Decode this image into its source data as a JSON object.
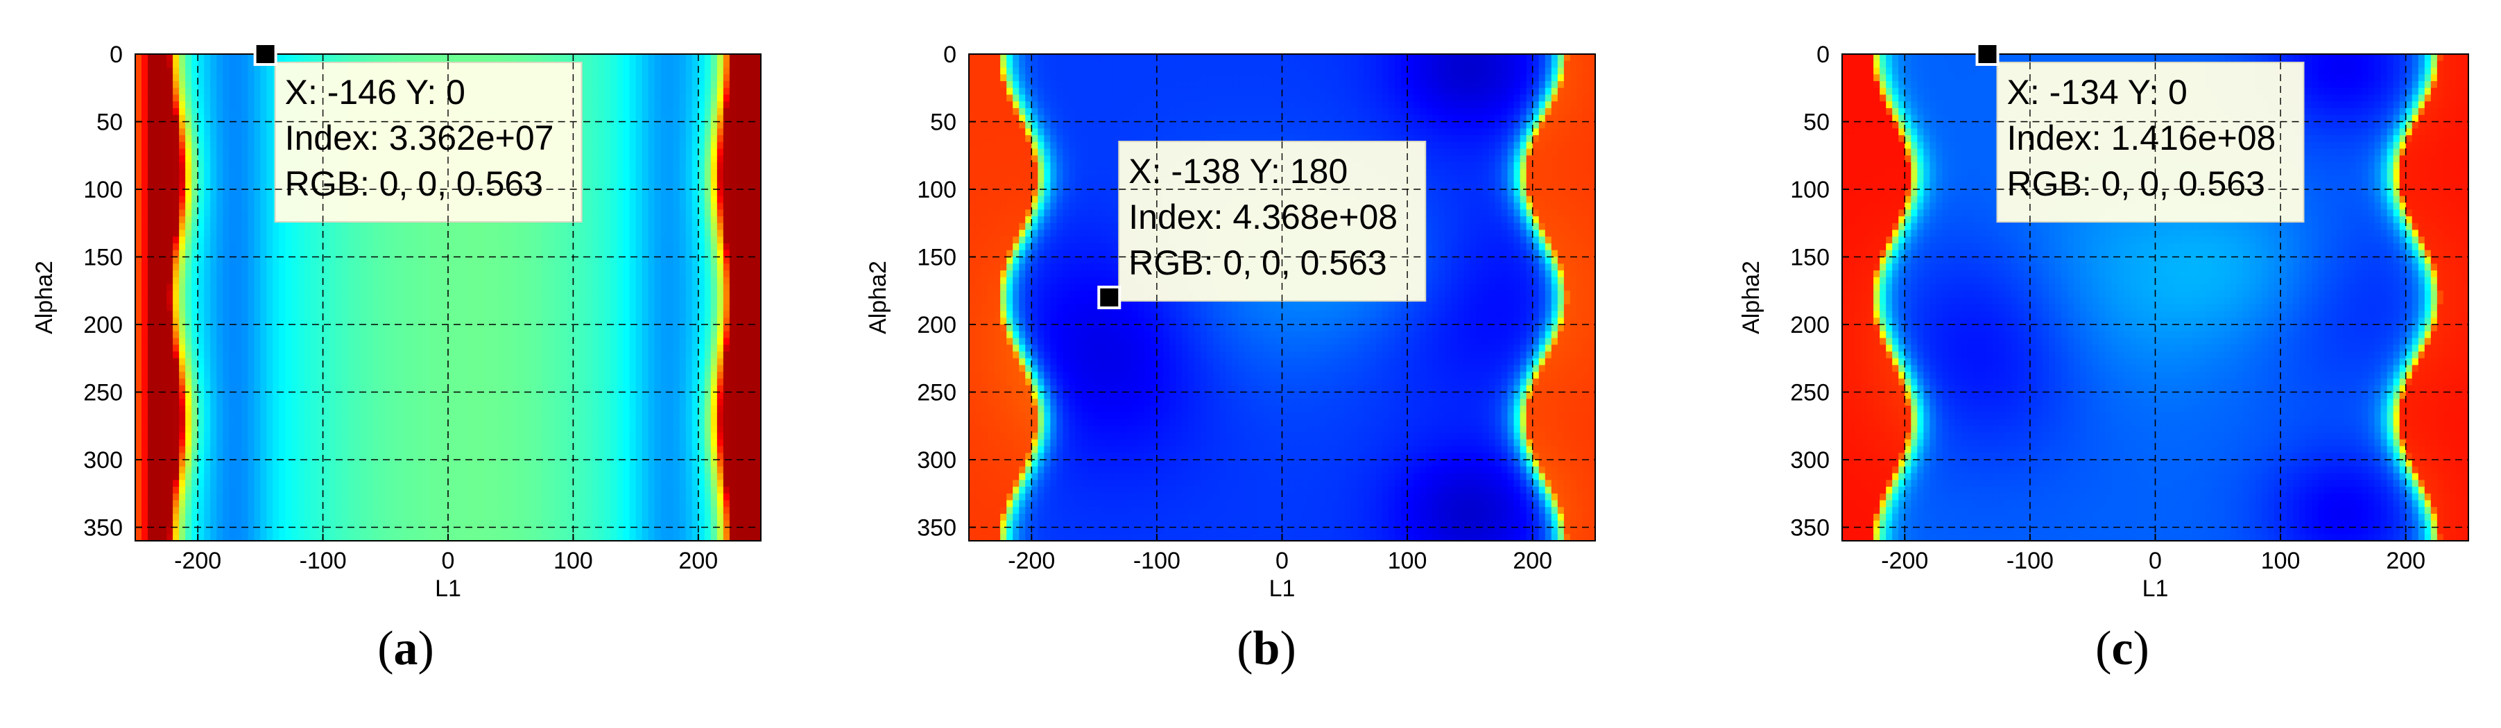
{
  "chart_data": [
    {
      "type": "heatmap",
      "label": "(a)",
      "xlabel": "L1",
      "ylabel": "Alpha2",
      "xlim": [
        -250,
        250
      ],
      "ylim": [
        0,
        360
      ],
      "y_reversed": true,
      "grid": true,
      "xticks": [
        -200,
        -100,
        0,
        100,
        200
      ],
      "yticks": [
        0,
        50,
        100,
        150,
        200,
        250,
        300,
        350
      ],
      "colormap": "jet",
      "pattern": "vertical-bands",
      "datatip": {
        "x": -146,
        "y": 0,
        "lines": [
          "X: -146 Y: 0",
          "Index: 3.362e+07",
          "RGB: 0, 0, 0.563"
        ]
      }
    },
    {
      "type": "heatmap",
      "label": "(b)",
      "xlabel": "L1",
      "ylabel": "Alpha2",
      "xlim": [
        -250,
        250
      ],
      "ylim": [
        0,
        360
      ],
      "y_reversed": true,
      "grid": true,
      "xticks": [
        -200,
        -100,
        0,
        100,
        200
      ],
      "yticks": [
        0,
        50,
        100,
        150,
        200,
        250,
        300,
        350
      ],
      "colormap": "jet",
      "pattern": "wavy-bands",
      "datatip": {
        "x": -138,
        "y": 180,
        "lines": [
          "X: -138 Y: 180",
          "Index: 4.368e+08",
          "RGB: 0, 0, 0.563"
        ]
      }
    },
    {
      "type": "heatmap",
      "label": "(c)",
      "xlabel": "L1",
      "ylabel": "Alpha2",
      "xlim": [
        -250,
        250
      ],
      "ylim": [
        0,
        360
      ],
      "y_reversed": true,
      "grid": true,
      "xticks": [
        -200,
        -100,
        0,
        100,
        200
      ],
      "yticks": [
        0,
        50,
        100,
        150,
        200,
        250,
        300,
        350
      ],
      "colormap": "jet",
      "pattern": "wavy-bands-soft",
      "datatip": {
        "x": -134,
        "y": 0,
        "lines": [
          "X: -134 Y: 0",
          "Index: 1.416e+08",
          "RGB: 0, 0, 0.563"
        ]
      }
    }
  ],
  "colors": {
    "datatip_bg": "#ffffe5",
    "datatip_border": "#d9d9c2",
    "grid": "#000000",
    "cmap_low": "#00007f",
    "cmap_high": "#a00000"
  }
}
